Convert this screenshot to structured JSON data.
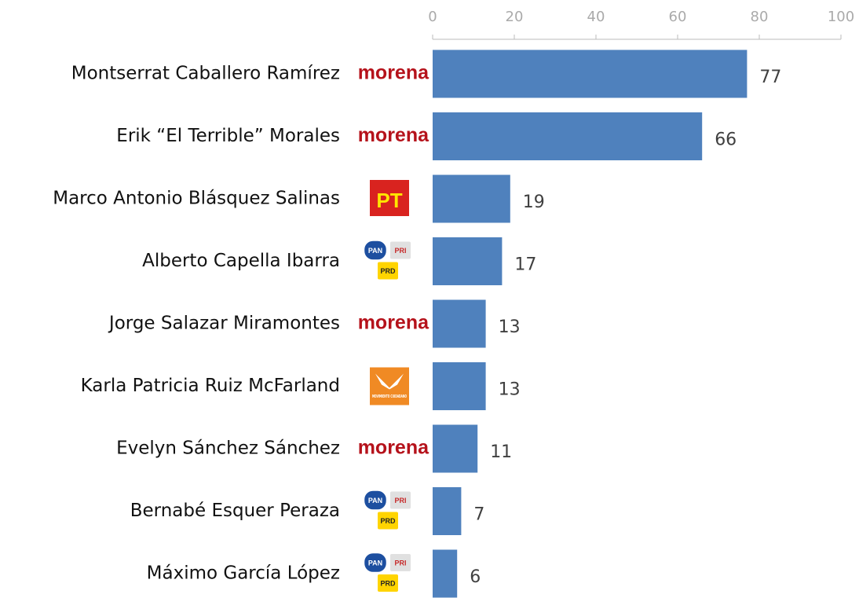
{
  "chart_data": {
    "type": "barh",
    "categories": [
      "Montserrat Caballero Ramírez",
      "Erik “El Terrible” Morales",
      "Marco Antonio Blásquez Salinas",
      "Alberto Capella Ibarra",
      "Jorge Salazar Miramontes",
      "Karla Patricia Ruiz McFarland",
      "Evelyn Sánchez Sánchez",
      "Bernabé Esquer Peraza",
      "Máximo García López"
    ],
    "logos": [
      [
        "morena"
      ],
      [
        "morena"
      ],
      [
        "PT"
      ],
      [
        "PAN",
        "PRI",
        "PRD"
      ],
      [
        "morena"
      ],
      [
        "MOVIMIENTO CIUDADANO"
      ],
      [
        "morena"
      ],
      [
        "PAN",
        "PRI",
        "PRD"
      ],
      [
        "PAN",
        "PRI",
        "PRD"
      ]
    ],
    "values": [
      77,
      66,
      19,
      17,
      13,
      13,
      11,
      7,
      6
    ],
    "color": "#4f81bd",
    "xlim": [
      0,
      100
    ],
    "xticks": [
      0,
      20,
      40,
      60,
      80,
      100
    ]
  }
}
